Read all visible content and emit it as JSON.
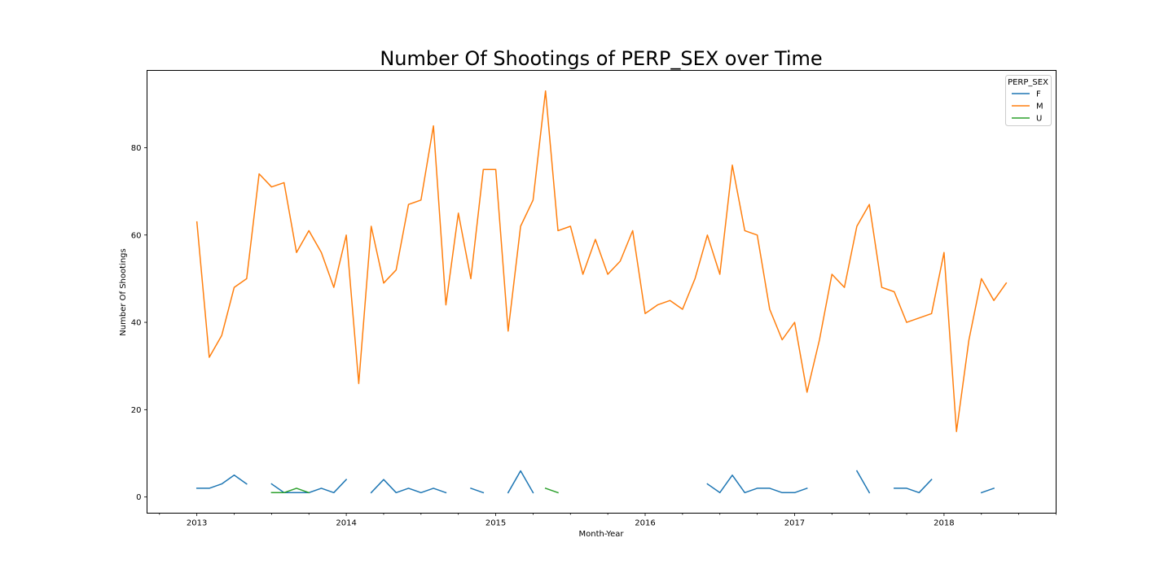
{
  "chart_data": {
    "type": "line",
    "title": "Number Of Shootings of PERP_SEX over Time",
    "xlabel": "Month-Year",
    "ylabel": "Number Of Shootings",
    "legend_title": "PERP_SEX",
    "legend_position": "top-right",
    "grid": false,
    "xlim": [
      "2012-09",
      "2018-10"
    ],
    "ylim": [
      -3.7,
      97.7
    ],
    "x_major_ticks": [
      {
        "x": "2013-01",
        "label": "2013"
      },
      {
        "x": "2014-01",
        "label": "2014"
      },
      {
        "x": "2015-01",
        "label": "2015"
      },
      {
        "x": "2016-01",
        "label": "2016"
      },
      {
        "x": "2017-01",
        "label": "2017"
      },
      {
        "x": "2018-01",
        "label": "2018"
      }
    ],
    "y_ticks": [
      0,
      20,
      40,
      60,
      80
    ],
    "x": [
      "2013-01",
      "2013-02",
      "2013-03",
      "2013-04",
      "2013-05",
      "2013-06",
      "2013-07",
      "2013-08",
      "2013-09",
      "2013-10",
      "2013-11",
      "2013-12",
      "2014-01",
      "2014-02",
      "2014-03",
      "2014-04",
      "2014-05",
      "2014-06",
      "2014-07",
      "2014-08",
      "2014-09",
      "2014-10",
      "2014-11",
      "2014-12",
      "2015-01",
      "2015-02",
      "2015-03",
      "2015-04",
      "2015-05",
      "2015-06",
      "2015-07",
      "2015-08",
      "2015-09",
      "2015-10",
      "2015-11",
      "2015-12",
      "2016-01",
      "2016-02",
      "2016-03",
      "2016-04",
      "2016-05",
      "2016-06",
      "2016-07",
      "2016-08",
      "2016-09",
      "2016-10",
      "2016-11",
      "2016-12",
      "2017-01",
      "2017-02",
      "2017-03",
      "2017-04",
      "2017-05",
      "2017-06",
      "2017-07",
      "2017-08",
      "2017-09",
      "2017-10",
      "2017-11",
      "2017-12",
      "2018-01",
      "2018-02",
      "2018-03",
      "2018-04",
      "2018-05",
      "2018-06"
    ],
    "series": [
      {
        "name": "F",
        "color": "#1f77b4",
        "values": [
          2,
          2,
          3,
          5,
          3,
          null,
          3,
          1,
          1,
          1,
          2,
          1,
          4,
          null,
          1,
          4,
          1,
          2,
          1,
          2,
          1,
          null,
          2,
          1,
          null,
          1,
          6,
          1,
          null,
          null,
          null,
          null,
          null,
          null,
          null,
          null,
          null,
          null,
          null,
          null,
          null,
          3,
          1,
          5,
          1,
          2,
          2,
          1,
          1,
          2,
          null,
          null,
          null,
          6,
          1,
          null,
          2,
          2,
          1,
          4,
          null,
          null,
          null,
          1,
          2,
          null
        ]
      },
      {
        "name": "M",
        "color": "#ff7f0e",
        "values": [
          63,
          32,
          37,
          48,
          50,
          74,
          71,
          72,
          56,
          61,
          56,
          48,
          60,
          26,
          62,
          49,
          52,
          67,
          68,
          85,
          44,
          65,
          50,
          75,
          75,
          38,
          62,
          68,
          93,
          61,
          62,
          51,
          59,
          51,
          54,
          61,
          42,
          44,
          45,
          43,
          50,
          60,
          51,
          76,
          61,
          60,
          43,
          36,
          40,
          24,
          36,
          51,
          48,
          62,
          67,
          48,
          47,
          40,
          41,
          42,
          56,
          15,
          36,
          50,
          45,
          49
        ]
      },
      {
        "name": "U",
        "color": "#2ca02c",
        "values": [
          null,
          null,
          null,
          null,
          null,
          null,
          1,
          1,
          2,
          1,
          null,
          null,
          null,
          null,
          null,
          null,
          null,
          null,
          null,
          null,
          null,
          null,
          null,
          null,
          null,
          null,
          null,
          null,
          2,
          1,
          null,
          null,
          null,
          null,
          null,
          null,
          null,
          null,
          null,
          null,
          null,
          null,
          null,
          null,
          null,
          null,
          null,
          null,
          null,
          null,
          null,
          null,
          null,
          null,
          null,
          null,
          null,
          null,
          null,
          null,
          null,
          null,
          null,
          null,
          null,
          null
        ]
      }
    ]
  }
}
